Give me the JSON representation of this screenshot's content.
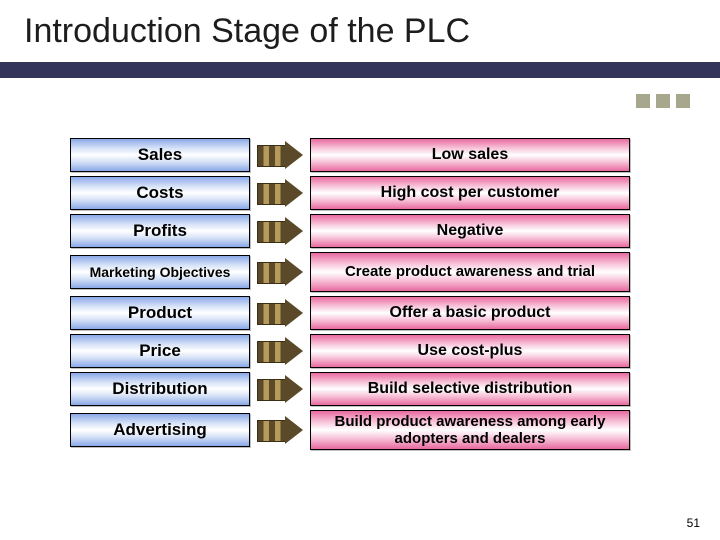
{
  "title": "Introduction Stage of the PLC",
  "page_number": "51",
  "colors": {
    "band": "#33355a",
    "decor_square": "#a6a78d",
    "blue_dark": "#8aa8e8",
    "blue_light": "#d9e4f7",
    "pink_dark": "#e86aa0",
    "pink_light": "#f8c8dc",
    "arrow_dark": "#5a4a2a",
    "arrow_light": "#b59a5a"
  },
  "rows": [
    {
      "left": "Sales",
      "right": "Low sales",
      "left_small": false,
      "right_two": false
    },
    {
      "left": "Costs",
      "right": "High cost per customer",
      "left_small": false,
      "right_two": false
    },
    {
      "left": "Profits",
      "right": "Negative",
      "left_small": false,
      "right_two": false
    },
    {
      "left": "Marketing Objectives",
      "right": "Create product awareness and trial",
      "left_small": true,
      "right_two": true
    },
    {
      "left": "Product",
      "right": "Offer a basic product",
      "left_small": false,
      "right_two": false
    },
    {
      "left": "Price",
      "right": "Use cost-plus",
      "left_small": false,
      "right_two": false
    },
    {
      "left": "Distribution",
      "right": "Build selective distribution",
      "left_small": false,
      "right_two": false
    },
    {
      "left": "Advertising",
      "right": "Build product awareness among early adopters and dealers",
      "left_small": false,
      "right_two": true
    }
  ]
}
